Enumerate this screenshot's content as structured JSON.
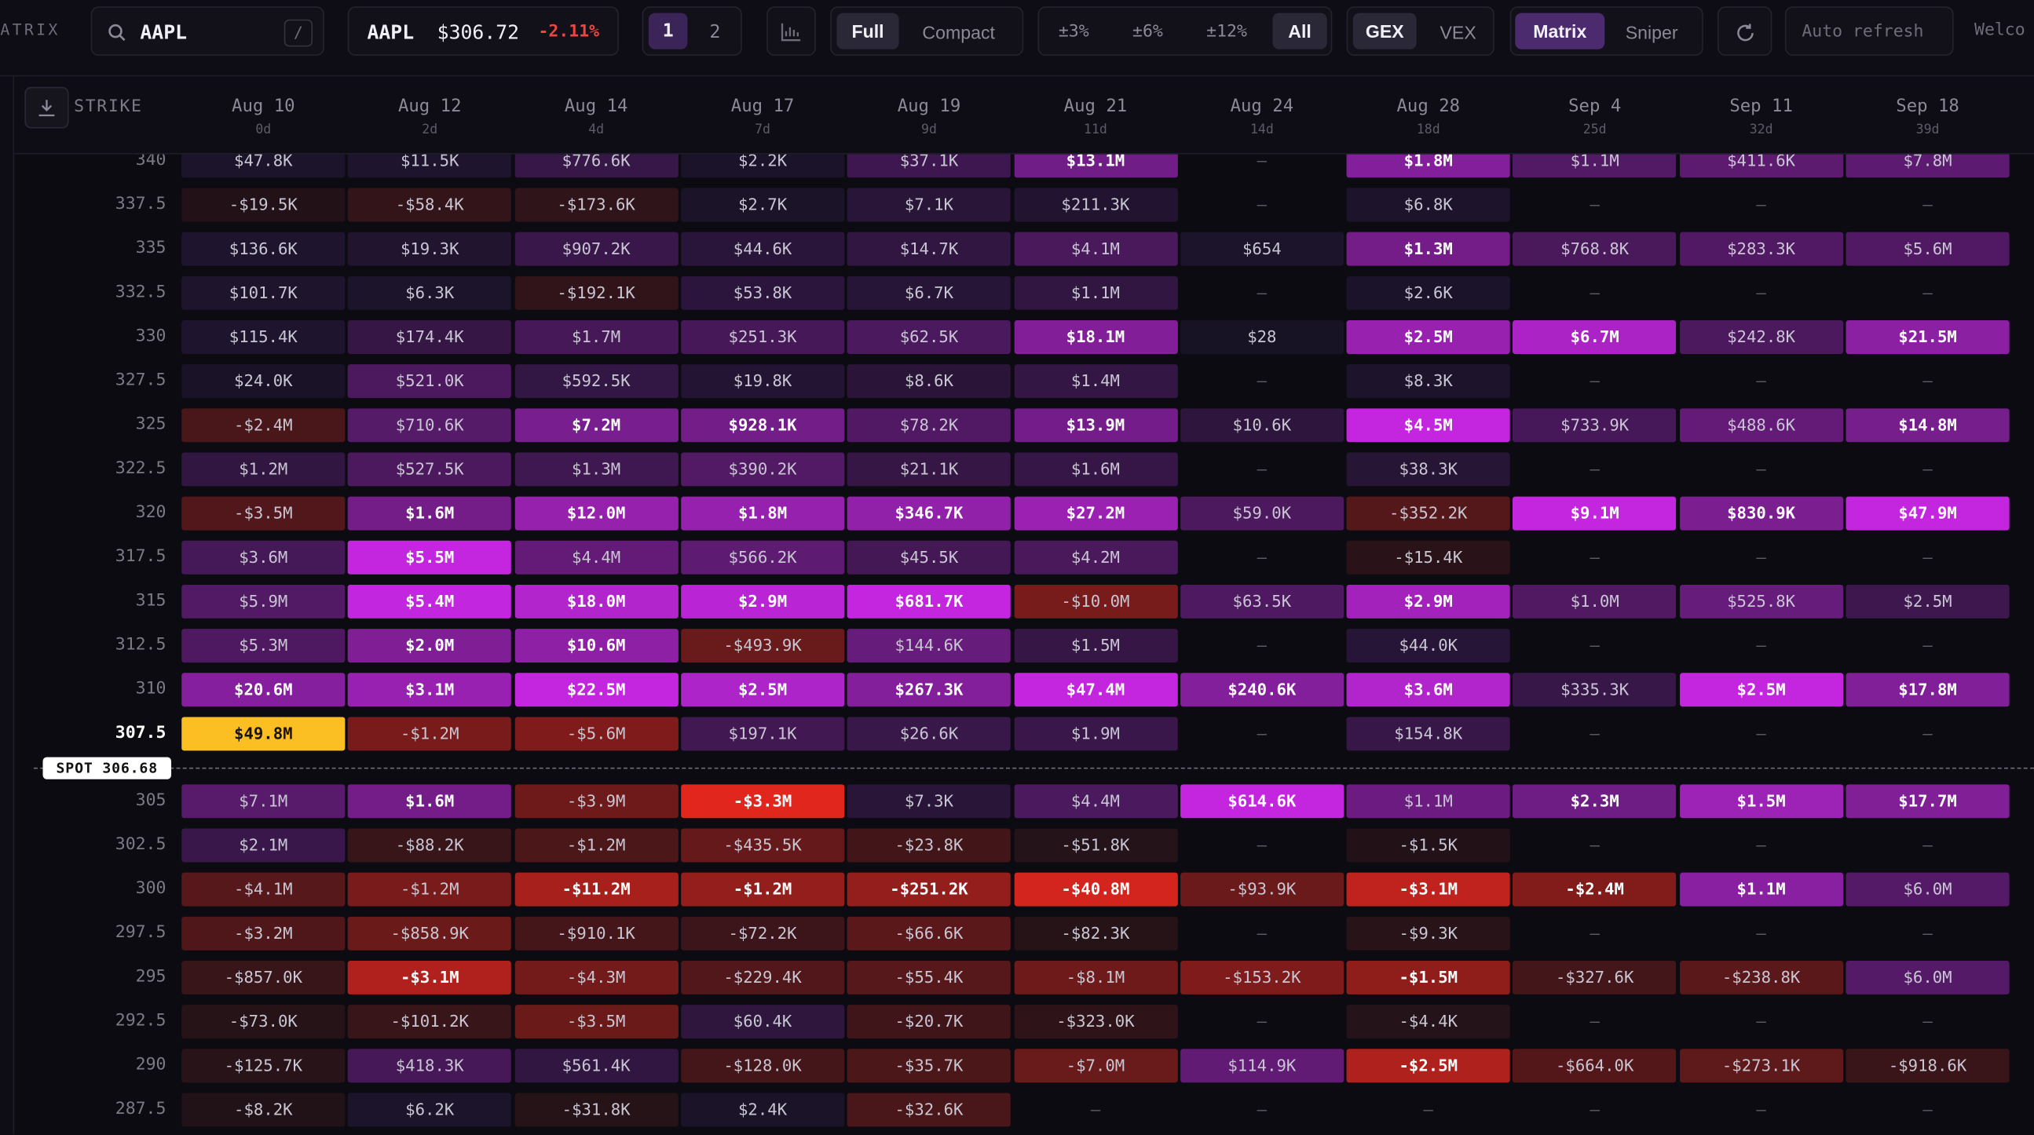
{
  "toolbar": {
    "app_name": "MATRIX",
    "search": "AAPL",
    "search_key": "/",
    "ticker": "AAPL",
    "price": "$306.72",
    "change": "-2.11%",
    "pages": [
      "1",
      "2"
    ],
    "views": [
      "Full",
      "Compact"
    ],
    "ranges": [
      "±3%",
      "±6%",
      "±12%",
      "All"
    ],
    "metrics": [
      "GEX",
      "VEX"
    ],
    "modes": [
      "Matrix",
      "Sniper"
    ],
    "auto_refresh": "Auto refresh",
    "welcome": "Welco"
  },
  "table": {
    "strike_label": "STRIKE",
    "spot_label": "SPOT 306.68",
    "columns": [
      {
        "date": "Aug 10",
        "dte": "0d"
      },
      {
        "date": "Aug 12",
        "dte": "2d"
      },
      {
        "date": "Aug 14",
        "dte": "4d"
      },
      {
        "date": "Aug 17",
        "dte": "7d"
      },
      {
        "date": "Aug 19",
        "dte": "9d"
      },
      {
        "date": "Aug 21",
        "dte": "11d"
      },
      {
        "date": "Aug 24",
        "dte": "14d"
      },
      {
        "date": "Aug 28",
        "dte": "18d"
      },
      {
        "date": "Sep 4",
        "dte": "25d"
      },
      {
        "date": "Sep 11",
        "dte": "32d"
      },
      {
        "date": "Sep 18",
        "dte": "39d"
      }
    ],
    "rows_above_spot": [
      {
        "strike": 340,
        "cells": [
          "$47.8K",
          "$11.5K",
          "$776.6K",
          "$2.2K",
          "$37.1K",
          "$13.1M",
          "—",
          "$1.8M",
          "$1.1M",
          "$411.6K",
          "$7.8M"
        ]
      },
      {
        "strike": 337.5,
        "cells": [
          "-$19.5K",
          "-$58.4K",
          "-$173.6K",
          "$2.7K",
          "$7.1K",
          "$211.3K",
          "—",
          "$6.8K",
          "—",
          "—",
          "—"
        ]
      },
      {
        "strike": 335,
        "cells": [
          "$136.6K",
          "$19.3K",
          "$907.2K",
          "$44.6K",
          "$14.7K",
          "$4.1M",
          "$654",
          "$1.3M",
          "$768.8K",
          "$283.3K",
          "$5.6M"
        ]
      },
      {
        "strike": 332.5,
        "cells": [
          "$101.7K",
          "$6.3K",
          "-$192.1K",
          "$53.8K",
          "$6.7K",
          "$1.1M",
          "—",
          "$2.6K",
          "—",
          "—",
          "—"
        ]
      },
      {
        "strike": 330,
        "cells": [
          "$115.4K",
          "$174.4K",
          "$1.7M",
          "$251.3K",
          "$62.5K",
          "$18.1M",
          "$28",
          "$2.5M",
          "$6.7M",
          "$242.8K",
          "$21.5M"
        ]
      },
      {
        "strike": 327.5,
        "cells": [
          "$24.0K",
          "$521.0K",
          "$592.5K",
          "$19.8K",
          "$8.6K",
          "$1.4M",
          "—",
          "$8.3K",
          "—",
          "—",
          "—"
        ]
      },
      {
        "strike": 325,
        "cells": [
          "-$2.4M",
          "$710.6K",
          "$7.2M",
          "$928.1K",
          "$78.2K",
          "$13.9M",
          "$10.6K",
          "$4.5M",
          "$733.9K",
          "$488.6K",
          "$14.8M"
        ]
      },
      {
        "strike": 322.5,
        "cells": [
          "$1.2M",
          "$527.5K",
          "$1.3M",
          "$390.2K",
          "$21.1K",
          "$1.6M",
          "—",
          "$38.3K",
          "—",
          "—",
          "—"
        ]
      },
      {
        "strike": 320,
        "cells": [
          "-$3.5M",
          "$1.6M",
          "$12.0M",
          "$1.8M",
          "$346.7K",
          "$27.2M",
          "$59.0K",
          "-$352.2K",
          "$9.1M",
          "$830.9K",
          "$47.9M"
        ]
      },
      {
        "strike": 317.5,
        "cells": [
          "$3.6M",
          "$5.5M",
          "$4.4M",
          "$566.2K",
          "$45.5K",
          "$4.2M",
          "—",
          "-$15.4K",
          "—",
          "—",
          "—"
        ]
      },
      {
        "strike": 315,
        "cells": [
          "$5.9M",
          "$5.4M",
          "$18.0M",
          "$2.9M",
          "$681.7K",
          "-$10.0M",
          "$63.5K",
          "$2.9M",
          "$1.0M",
          "$525.8K",
          "$2.5M"
        ]
      },
      {
        "strike": 312.5,
        "cells": [
          "$5.3M",
          "$2.0M",
          "$10.6M",
          "-$493.9K",
          "$144.6K",
          "$1.5M",
          "—",
          "$44.0K",
          "—",
          "—",
          "—"
        ]
      },
      {
        "strike": 310,
        "cells": [
          "$20.6M",
          "$3.1M",
          "$22.5M",
          "$2.5M",
          "$267.3K",
          "$47.4M",
          "$240.6K",
          "$3.6M",
          "$335.3K",
          "$2.5M",
          "$17.8M"
        ]
      },
      {
        "strike": 307.5,
        "cells": [
          "$49.8M",
          "-$1.2M",
          "-$5.6M",
          "$197.1K",
          "$26.6K",
          "$1.9M",
          "—",
          "$154.8K",
          "—",
          "—",
          "—"
        ]
      }
    ],
    "rows_below_spot": [
      {
        "strike": 305,
        "cells": [
          "$7.1M",
          "$1.6M",
          "-$3.9M",
          "-$3.3M",
          "$7.3K",
          "$4.4M",
          "$614.6K",
          "$1.1M",
          "$2.3M",
          "$1.5M",
          "$17.7M"
        ]
      },
      {
        "strike": 302.5,
        "cells": [
          "$2.1M",
          "-$88.2K",
          "-$1.2M",
          "-$435.5K",
          "-$23.8K",
          "-$51.8K",
          "—",
          "-$1.5K",
          "—",
          "—",
          "—"
        ]
      },
      {
        "strike": 300,
        "cells": [
          "-$4.1M",
          "-$1.2M",
          "-$11.2M",
          "-$1.2M",
          "-$251.2K",
          "-$40.8M",
          "-$93.9K",
          "-$3.1M",
          "-$2.4M",
          "$1.1M",
          "$6.0M"
        ]
      },
      {
        "strike": 297.5,
        "cells": [
          "-$3.2M",
          "-$858.9K",
          "-$910.1K",
          "-$72.2K",
          "-$66.6K",
          "-$82.3K",
          "—",
          "-$9.3K",
          "—",
          "—",
          "—"
        ]
      },
      {
        "strike": 295,
        "cells": [
          "-$857.0K",
          "-$3.1M",
          "-$4.3M",
          "-$229.4K",
          "-$55.4K",
          "-$8.1M",
          "-$153.2K",
          "-$1.5M",
          "-$327.6K",
          "-$238.8K",
          "$6.0M"
        ]
      },
      {
        "strike": 292.5,
        "cells": [
          "-$73.0K",
          "-$101.2K",
          "-$3.5M",
          "$60.4K",
          "-$20.7K",
          "-$323.0K",
          "—",
          "-$4.4K",
          "—",
          "—",
          "—"
        ]
      },
      {
        "strike": 290,
        "cells": [
          "-$125.7K",
          "$418.3K",
          "$561.4K",
          "-$128.0K",
          "-$35.7K",
          "-$7.0M",
          "$114.9K",
          "-$2.5M",
          "-$664.0K",
          "-$273.1K",
          "-$918.6K"
        ]
      },
      {
        "strike": 287.5,
        "cells": [
          "-$8.2K",
          "$6.2K",
          "-$31.8K",
          "$2.4K",
          "-$32.6K",
          "—",
          "—",
          "—",
          "—",
          "—",
          "—"
        ]
      }
    ]
  }
}
